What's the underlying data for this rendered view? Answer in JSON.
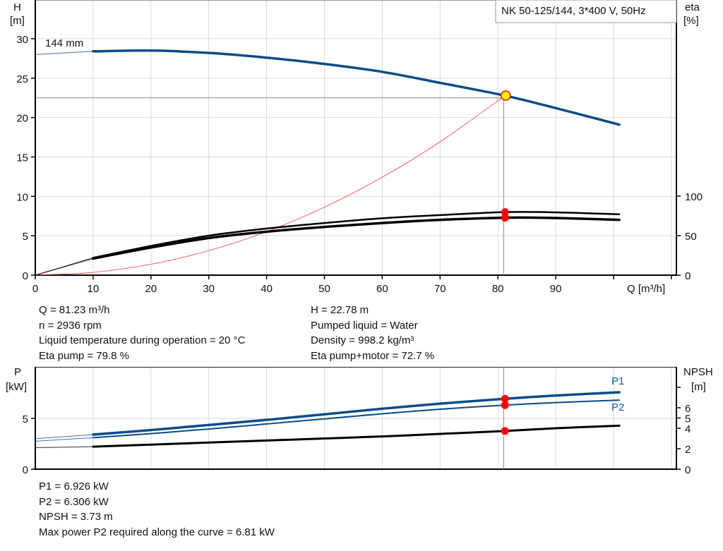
{
  "chart_data": [
    {
      "type": "line",
      "title": "NK 50-125/144, 3*400 V, 50Hz",
      "xlabel": "Q [m³/h]",
      "ylabel_left": [
        "H",
        "[m]"
      ],
      "ylabel_right": [
        "eta",
        "[%]"
      ],
      "xlim": [
        0,
        110
      ],
      "ylim_left": [
        0,
        35
      ],
      "ylim_right": [
        0,
        100
      ],
      "x_ticks": [
        "0",
        "10",
        "20",
        "30",
        "40",
        "50",
        "60",
        "70",
        "80",
        "90"
      ],
      "y_ticks_left": [
        "0",
        "5",
        "10",
        "15",
        "20",
        "25",
        "30"
      ],
      "y_ticks_right": [
        "0",
        "50",
        "100"
      ],
      "grid": true,
      "curve_label": "144 mm",
      "series": [
        {
          "key": "H",
          "axis": "left",
          "color": "#0b4c88",
          "x": [
            0,
            10,
            20,
            30,
            40,
            50,
            60,
            70,
            81.23,
            90,
            101
          ],
          "y": [
            28.0,
            28.4,
            28.5,
            28.2,
            27.6,
            26.8,
            25.8,
            24.4,
            22.78,
            21.2,
            19.1
          ]
        },
        {
          "key": "eta_pump",
          "axis": "right",
          "color": "#000000",
          "x": [
            0,
            10,
            20,
            30,
            40,
            50,
            60,
            70,
            81.23,
            90,
            101
          ],
          "y": [
            0,
            22,
            37,
            50,
            59,
            66,
            72,
            76,
            79.8,
            79.5,
            77
          ]
        },
        {
          "key": "eta_pump_motor",
          "axis": "right",
          "color": "#000000",
          "x": [
            0,
            10,
            20,
            30,
            40,
            50,
            60,
            70,
            81.23,
            90,
            101
          ],
          "y": [
            0,
            21,
            35,
            47,
            55,
            61,
            66,
            70,
            72.7,
            72.3,
            70
          ]
        },
        {
          "key": "system",
          "axis": "left",
          "color": "#ff3b3b",
          "x": [
            0,
            10,
            20,
            30,
            40,
            50,
            60,
            70,
            81.23
          ],
          "y": [
            0,
            0.35,
            1.38,
            3.11,
            5.52,
            8.63,
            12.43,
            16.92,
            22.78
          ]
        }
      ],
      "duty_point": {
        "Q": 81.23,
        "H": 22.78,
        "eta_pump": 79.8,
        "eta_pump_motor": 72.7
      }
    },
    {
      "type": "line",
      "ylabel_left": [
        "P",
        "[kW]"
      ],
      "ylabel_right": [
        "NPSH",
        "[m]"
      ],
      "xlim": [
        0,
        110
      ],
      "ylim_left": [
        0,
        10
      ],
      "y_ticks_left": [
        "0",
        "5"
      ],
      "y_ticks_right": [
        "0",
        "2",
        "4",
        "5",
        "6"
      ],
      "grid": true,
      "series": [
        {
          "key": "P1",
          "name": "P1",
          "axis": "left",
          "color": "#0b4c88",
          "x": [
            0,
            10,
            20,
            30,
            40,
            50,
            60,
            70,
            81.23,
            90,
            101
          ],
          "y": [
            3.0,
            3.4,
            3.85,
            4.35,
            4.85,
            5.4,
            5.95,
            6.45,
            6.926,
            7.25,
            7.57
          ]
        },
        {
          "key": "P2",
          "name": "P2",
          "axis": "left",
          "color": "#0b4c88",
          "x": [
            0,
            10,
            20,
            30,
            40,
            50,
            60,
            70,
            81.23,
            90,
            101
          ],
          "y": [
            2.75,
            3.1,
            3.5,
            3.95,
            4.45,
            4.95,
            5.45,
            5.9,
            6.306,
            6.55,
            6.8
          ]
        },
        {
          "key": "NPSH",
          "axis": "right",
          "color": "#000000",
          "x": [
            0,
            10,
            20,
            30,
            40,
            50,
            60,
            70,
            81.23,
            90,
            101
          ],
          "y": [
            2.1,
            2.2,
            2.4,
            2.6,
            2.8,
            3.0,
            3.2,
            3.45,
            3.73,
            4.0,
            4.25
          ]
        }
      ]
    }
  ],
  "operating_info": {
    "left": [
      "Q = 81.23 m³/h",
      "n = 2936 rpm",
      "Liquid temperature during operation = 20 °C",
      "Eta pump = 79.8 %"
    ],
    "right": [
      "H = 22.78 m",
      "Pumped liquid = Water",
      "Density = 998.2 kg/m³",
      "Eta pump+motor = 72.7 %"
    ]
  },
  "power_info": [
    "P1 = 6.926 kW",
    "P2 = 6.306 kW",
    "NPSH = 3.73 m",
    "Max power P2 required along the curve = 6.81 kW"
  ],
  "colors": {
    "curve_blue": "#0b4c88",
    "duty_fill": "#ffff00",
    "duty_marker": "#ff0000",
    "grid": "#d9d9d9"
  }
}
